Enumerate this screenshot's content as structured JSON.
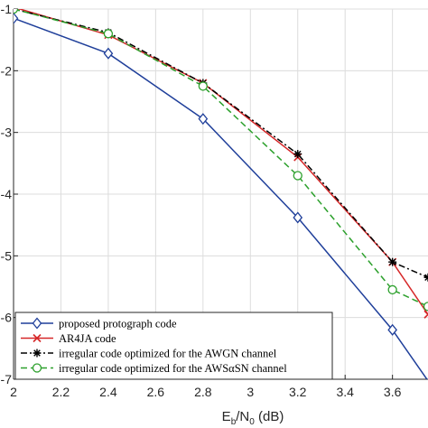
{
  "chart_data": {
    "type": "line",
    "xlabel": {
      "main": "E",
      "sub1": "b",
      "mid": "/N",
      "sub2": "0",
      "tail": " (dB)"
    },
    "xlim": [
      2,
      3.75
    ],
    "ylim": [
      -7,
      -1
    ],
    "yscale": "log",
    "x_ticks": [
      2,
      2.2,
      2.4,
      2.6,
      2.8,
      3,
      3.2,
      3.4,
      3.6
    ],
    "x_tick_labels": [
      "2",
      "2.2",
      "2.4",
      "2.6",
      "2.8",
      "3",
      "3.2",
      "3.4",
      "3.6"
    ],
    "y_ticks": [
      -1,
      -2,
      -3,
      -4,
      -5,
      -6,
      -7
    ],
    "y_tick_labels": [
      "-1",
      "-2",
      "-3",
      "-4",
      "-5",
      "-6",
      "-7"
    ],
    "grid": true,
    "legend_position": "bottom-left",
    "series": [
      {
        "name": "proposed protograph code",
        "color": "#1f3f9a",
        "dash": "solid",
        "marker": "diamond",
        "x": [
          2,
          2.4,
          2.8,
          3.2,
          3.6,
          3.8
        ],
        "y": [
          -1.15,
          -1.72,
          -2.78,
          -4.38,
          -6.2,
          -7.3
        ]
      },
      {
        "name": "AR4JA code",
        "color": "#d62728",
        "dash": "solid",
        "marker": "x",
        "x": [
          2,
          2.4,
          2.8,
          3.2,
          3.6,
          3.75
        ],
        "y": [
          -0.97,
          -1.42,
          -2.2,
          -3.4,
          -5.1,
          -5.95
        ]
      },
      {
        "name": "irregular code optimized for the AWGN channel",
        "color": "#000000",
        "dash": "dashdot",
        "marker": "star",
        "x": [
          2,
          2.4,
          2.8,
          3.2,
          3.6,
          3.75
        ],
        "y": [
          -1.0,
          -1.38,
          -2.2,
          -3.35,
          -5.1,
          -5.35
        ]
      },
      {
        "name": "irregular code optimized for the AWSαSN channel",
        "color": "#2ca02c",
        "dash": "dashed",
        "marker": "circle",
        "x": [
          2,
          2.4,
          2.8,
          3.2,
          3.6,
          3.75
        ],
        "y": [
          -1.0,
          -1.4,
          -2.25,
          -3.7,
          -5.55,
          -5.82
        ]
      }
    ]
  }
}
